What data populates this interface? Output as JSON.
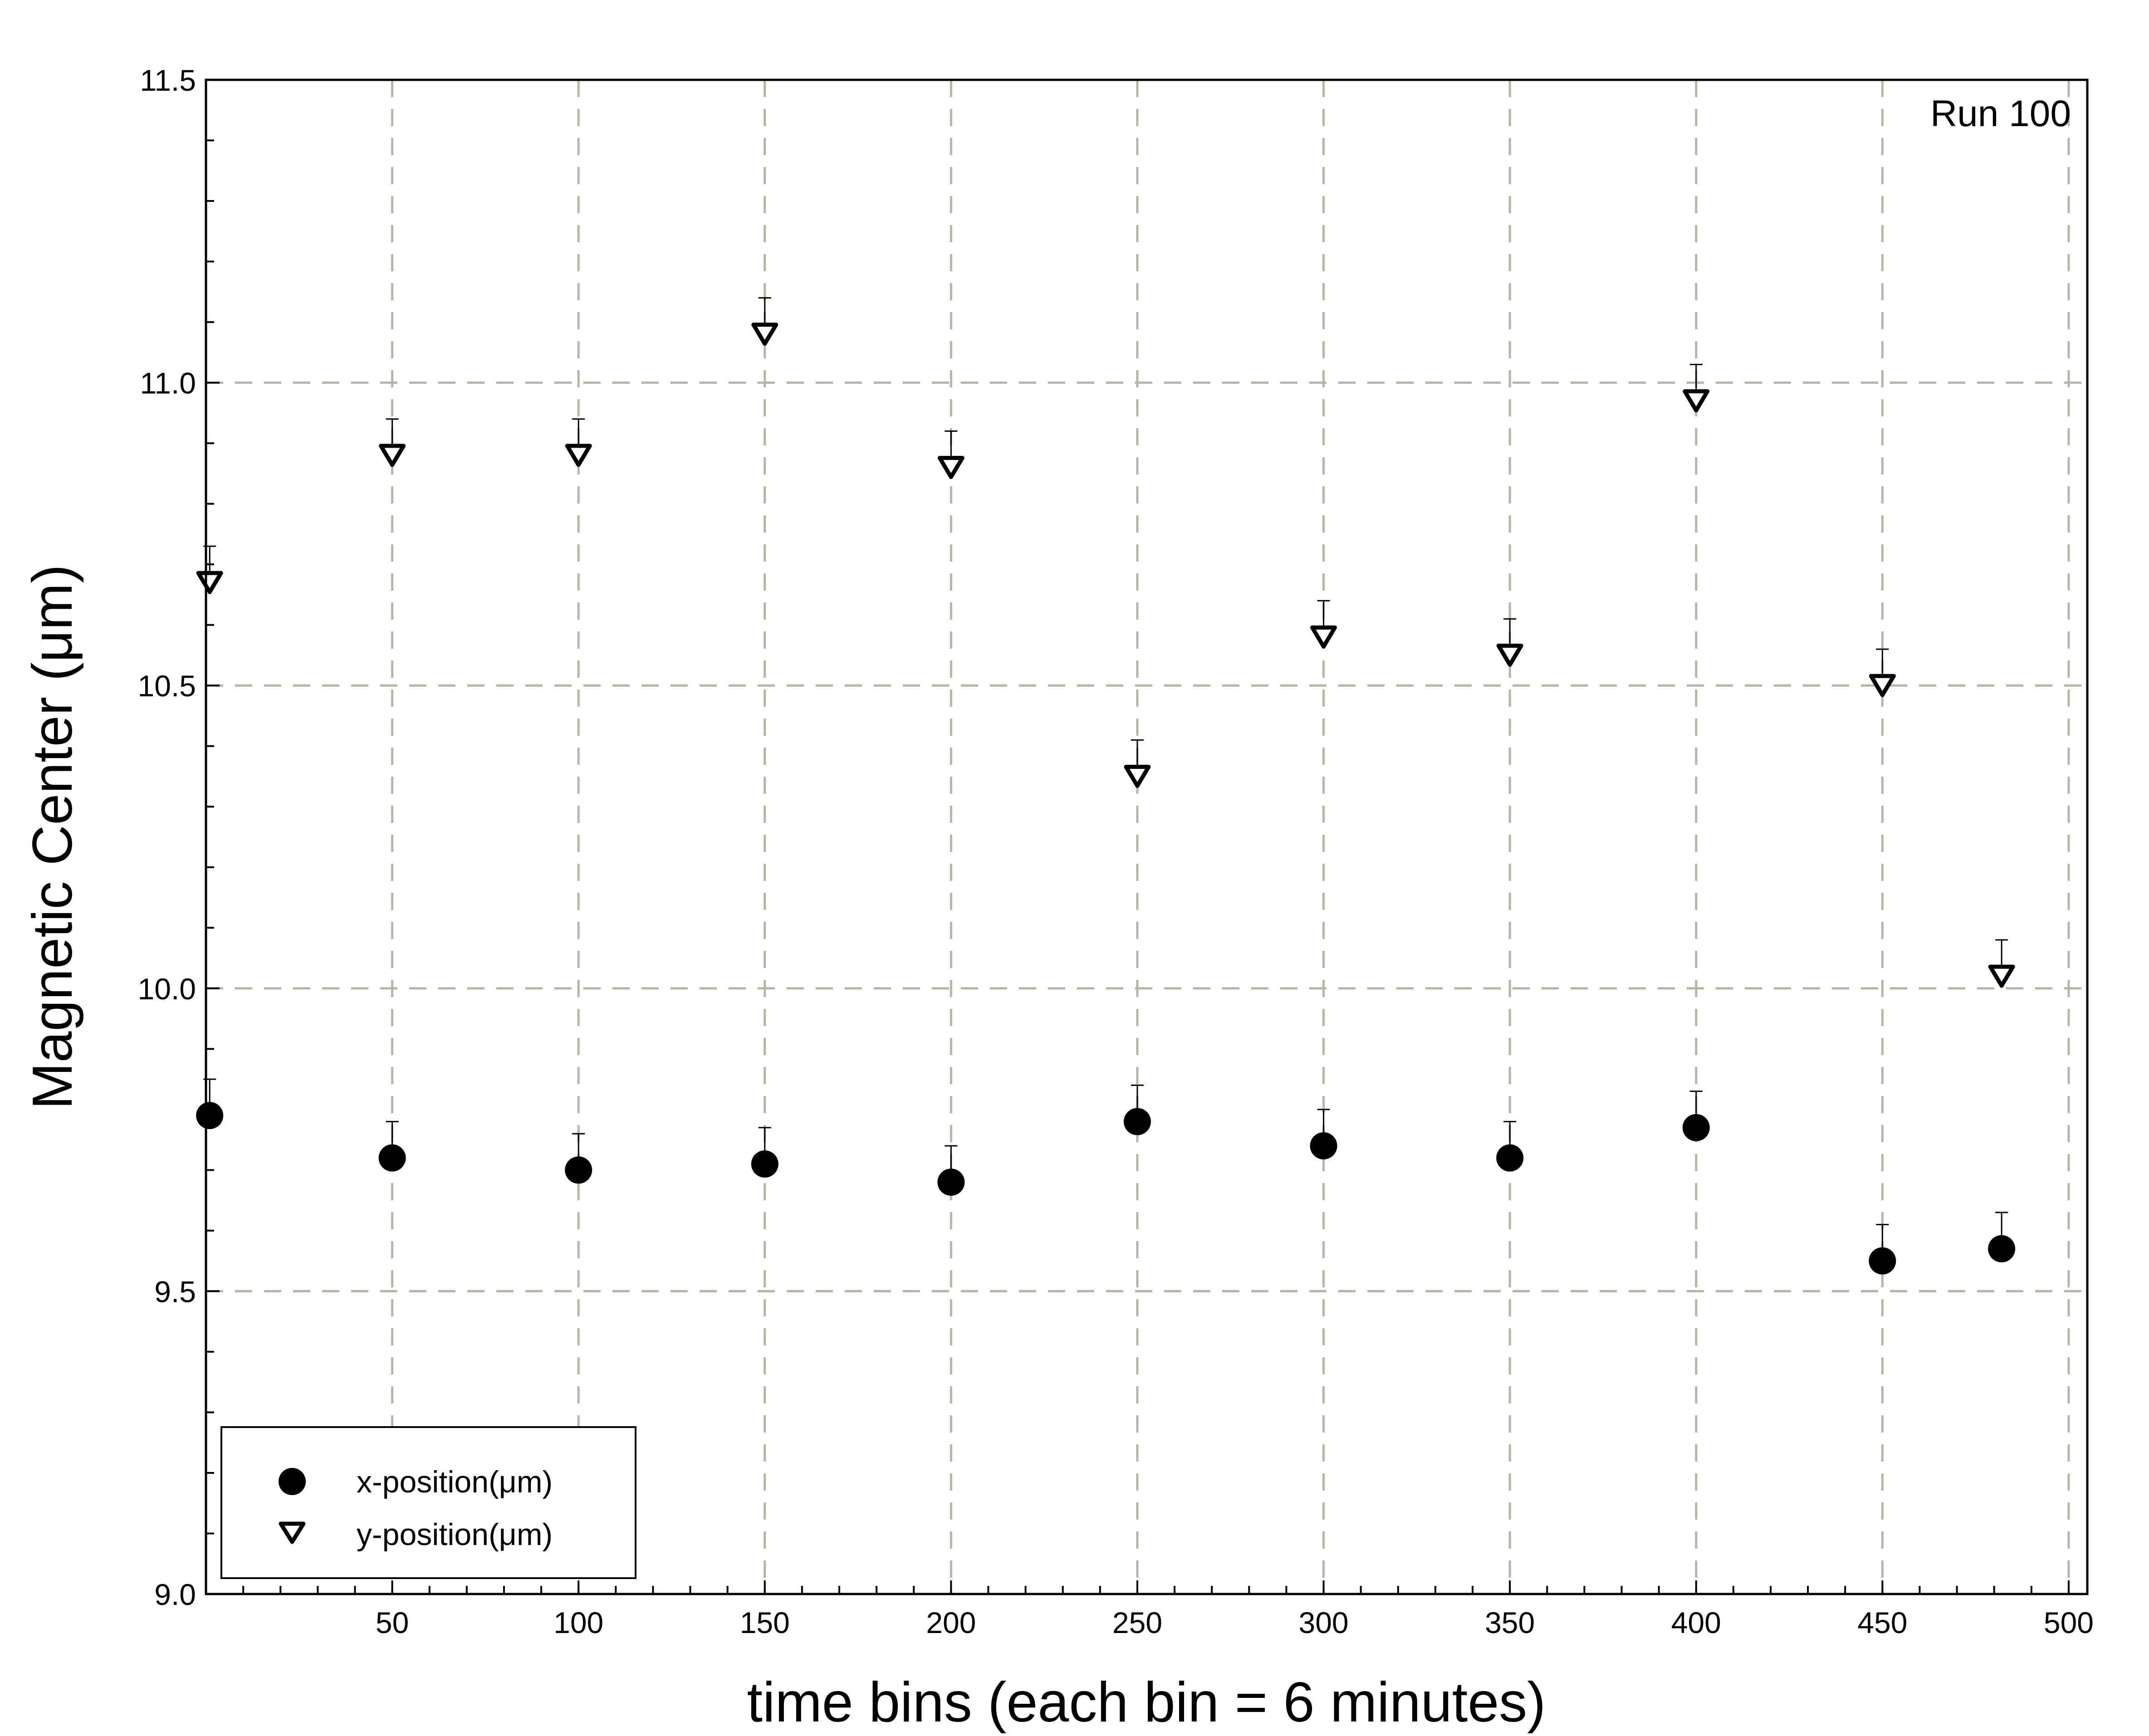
{
  "chart_data": {
    "type": "scatter",
    "title": "",
    "annotation": "Run 100",
    "xlabel": "time bins (each bin = 6 minutes)",
    "ylabel": "Magnetic Center (μm)",
    "xlim": [
      0,
      505
    ],
    "ylim": [
      9.0,
      11.5
    ],
    "x_ticks": [
      50,
      100,
      150,
      200,
      250,
      300,
      350,
      400,
      450,
      500
    ],
    "x_tick_labels": [
      "50",
      "100",
      "150",
      "200",
      "250",
      "300",
      "350",
      "400",
      "450",
      "500"
    ],
    "y_ticks": [
      9.0,
      9.5,
      10.0,
      10.5,
      11.0,
      11.5
    ],
    "y_tick_labels": [
      "9.0",
      "9.5",
      "10.0",
      "10.5",
      "11.0",
      "11.5"
    ],
    "x_minor_step": 10,
    "y_minor_step": 0.1,
    "grid": true,
    "grid_style": "dashed",
    "grid_color": "#b5b5a5",
    "error_bars": true,
    "legend_position": "bottom-left",
    "series": [
      {
        "name": "x-position(μm)",
        "marker": "filled-circle",
        "color": "#000000",
        "x": [
          1,
          50,
          100,
          150,
          200,
          250,
          300,
          350,
          400,
          450,
          482
        ],
        "y": [
          9.79,
          9.72,
          9.7,
          9.71,
          9.68,
          9.78,
          9.74,
          9.72,
          9.77,
          9.55,
          9.57
        ]
      },
      {
        "name": "y-position(μm)",
        "marker": "open-triangle-down",
        "color": "#000000",
        "x": [
          1,
          50,
          100,
          150,
          200,
          250,
          300,
          350,
          400,
          450,
          482
        ],
        "y": [
          10.67,
          10.88,
          10.88,
          11.08,
          10.86,
          10.35,
          10.58,
          10.55,
          10.97,
          10.5,
          10.02
        ]
      }
    ]
  }
}
